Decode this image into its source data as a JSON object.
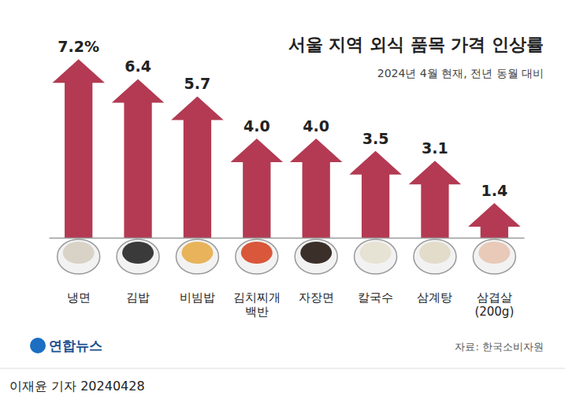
{
  "chart_data": {
    "type": "bar",
    "title": "서울 지역 외식 품목 가격 인상률",
    "subtitle": "2024년 4월 현재, 전년 동월 대비",
    "categories": [
      "냉면",
      "김밥",
      "비빔밥",
      "김치찌개 백반",
      "자장면",
      "칼국수",
      "삼계탕",
      "삼겹살 (200g)"
    ],
    "values": [
      7.2,
      6.4,
      5.7,
      4.0,
      4.0,
      3.5,
      3.1,
      1.4
    ],
    "value_labels": [
      "7.2%",
      "6.4",
      "5.7",
      "4.0",
      "4.0",
      "3.5",
      "3.1",
      "1.4"
    ],
    "color": "#b33a52",
    "ylim": [
      0,
      8
    ],
    "grid": false,
    "data_labels": true,
    "tick_labels": "x",
    "source": "자료: 한국소비자원",
    "logo": "연합뉴스",
    "byline": "이재윤 기자 20240428"
  }
}
